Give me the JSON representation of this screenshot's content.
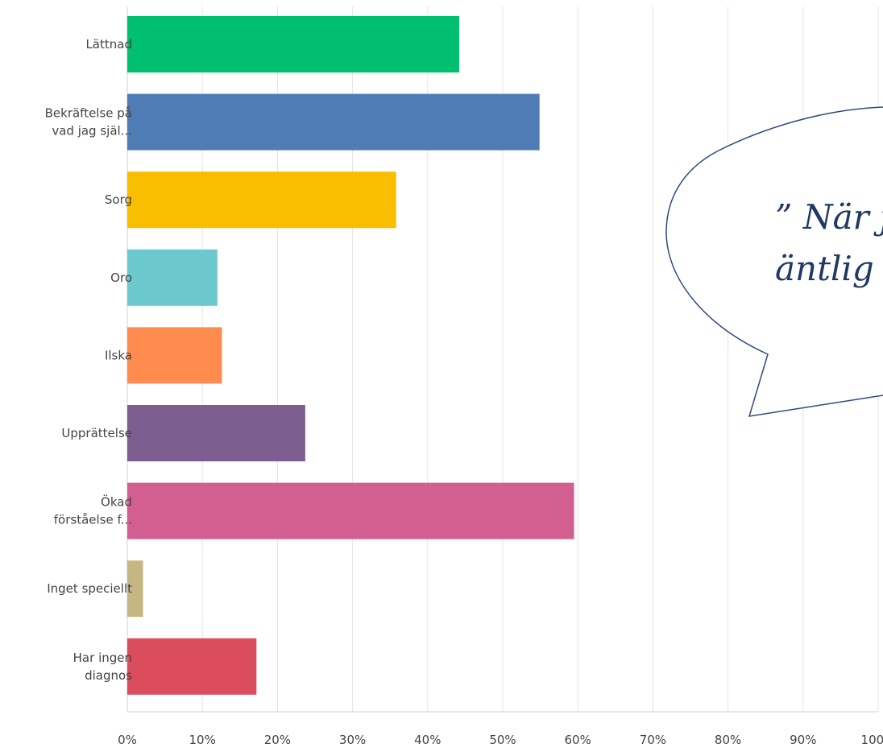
{
  "chart_data": {
    "type": "bar",
    "orientation": "horizontal",
    "categories": [
      [
        "Lättnad"
      ],
      [
        "Bekräftelse på",
        "vad jag själ..."
      ],
      [
        "Sorg"
      ],
      [
        "Oro"
      ],
      [
        "Ilska"
      ],
      [
        "Upprättelse"
      ],
      [
        "Ökad",
        "förståelse f..."
      ],
      [
        "Inget speciellt"
      ],
      [
        "Har ingen",
        "diagnos"
      ]
    ],
    "values": [
      44.2,
      54.9,
      35.8,
      12.0,
      12.6,
      23.7,
      59.5,
      2.1,
      17.2
    ],
    "colors": [
      "#00bf6f",
      "#507cb6",
      "#f9be00",
      "#6bc8cd",
      "#ff8b4f",
      "#7d5e90",
      "#d25f90",
      "#c5b784",
      "#db4d5c"
    ],
    "x_ticks": [
      "0%",
      "10%",
      "20%",
      "30%",
      "40%",
      "50%",
      "60%",
      "70%",
      "80%",
      "90%",
      "100%"
    ],
    "xlim": [
      0,
      100
    ],
    "grid": true
  },
  "callout": {
    "lines": [
      "” När j",
      "äntlig"
    ]
  }
}
